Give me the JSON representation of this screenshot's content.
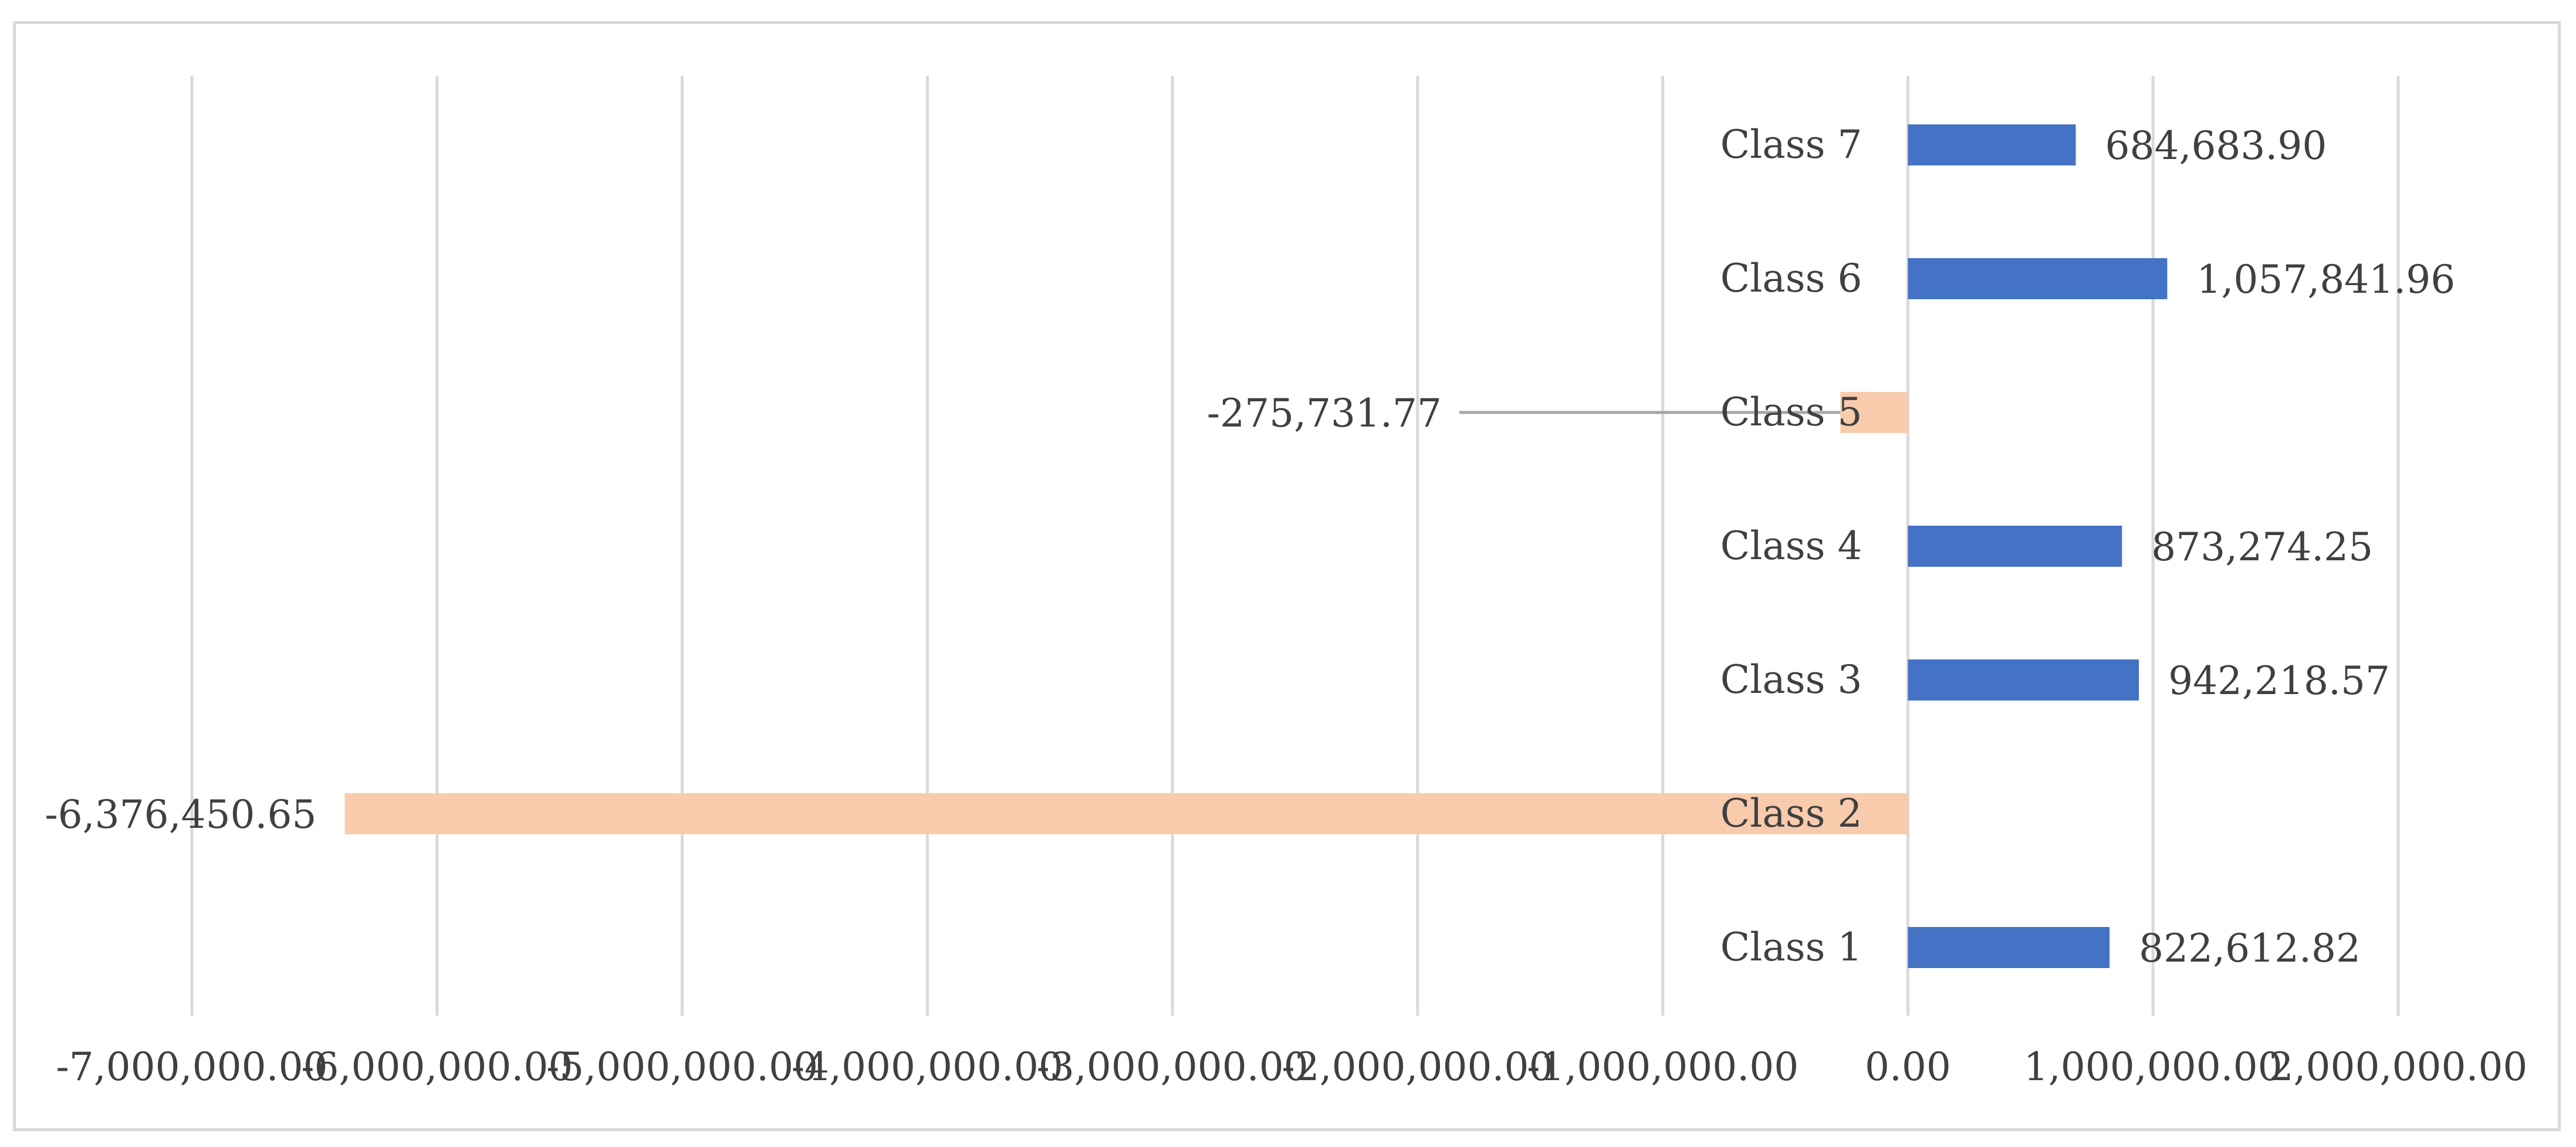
{
  "chart_data": {
    "type": "bar",
    "orientation": "horizontal",
    "categories": [
      "Class 1",
      "Class 2",
      "Class 3",
      "Class 4",
      "Class 5",
      "Class 6",
      "Class 7"
    ],
    "values": [
      822612.82,
      -6376450.65,
      942218.57,
      873274.25,
      -275731.77,
      1057841.96,
      684683.9
    ],
    "value_labels": [
      "822,612.82",
      "-6,376,450.65",
      "942,218.57",
      "873,274.25",
      "-275,731.77",
      "1,057,841.96",
      "684,683.90"
    ],
    "x_ticks": [
      -7000000,
      -6000000,
      -5000000,
      -4000000,
      -3000000,
      -2000000,
      -1000000,
      0,
      1000000,
      2000000
    ],
    "x_tick_labels": [
      "-7,000,000.00",
      "-6,000,000.00",
      "-5,000,000.00",
      "-4,000,000.00",
      "-3,000,000.00",
      "-2,000,000.00",
      "-1,000,000.00",
      "0.00",
      "1,000,000.00",
      "2,000,000.00"
    ],
    "xlim": [
      -7000000,
      2000000
    ],
    "grid": "vertical",
    "legend": "none",
    "title": "",
    "xlabel": "",
    "ylabel": "",
    "colors": {
      "positive": "#4472C4",
      "negative": "#F8CBAD",
      "grid": "#d9d9d9",
      "text": "#404040",
      "leader": "#a6a6a6"
    }
  }
}
